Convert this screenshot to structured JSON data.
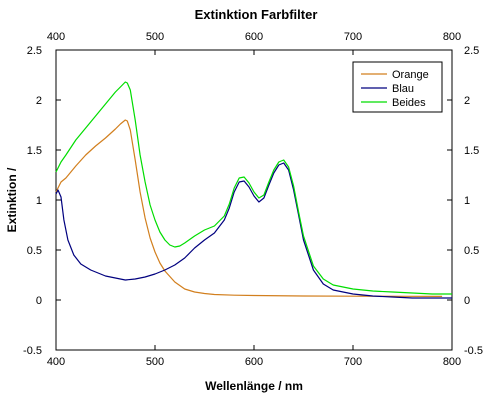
{
  "chart_data": {
    "type": "line",
    "title": "Extinktion Farbfilter",
    "xlabel": "Wellenlänge / nm",
    "ylabel": "Extinktion /",
    "xlim": [
      400,
      800
    ],
    "ylim": [
      -0.5,
      2.5
    ],
    "x_ticks": [
      400,
      500,
      600,
      700,
      800
    ],
    "y_ticks": [
      -0.5,
      0,
      0.5,
      1,
      1.5,
      2,
      2.5
    ],
    "x_tick_labels": [
      "400",
      "500",
      "600",
      "700",
      "800"
    ],
    "y_tick_labels": [
      "-0.5",
      "0",
      "0.5",
      "1",
      "1.5",
      "2",
      "2.5"
    ],
    "grid": false,
    "legend": "top-right",
    "series": [
      {
        "name": "Orange",
        "color": "#d27f1e",
        "x": [
          400,
          405,
          410,
          420,
          430,
          440,
          450,
          460,
          465,
          470,
          472,
          475,
          480,
          485,
          490,
          495,
          500,
          505,
          510,
          520,
          530,
          540,
          550,
          560,
          580,
          600,
          650,
          700,
          750,
          790
        ],
        "y": [
          1.08,
          1.18,
          1.22,
          1.34,
          1.45,
          1.54,
          1.62,
          1.71,
          1.76,
          1.8,
          1.79,
          1.7,
          1.4,
          1.08,
          0.82,
          0.62,
          0.48,
          0.37,
          0.29,
          0.18,
          0.11,
          0.08,
          0.065,
          0.055,
          0.048,
          0.045,
          0.04,
          0.038,
          0.037,
          0.036
        ]
      },
      {
        "name": "Blau",
        "color": "#00007f",
        "x": [
          400,
          402,
          405,
          408,
          412,
          418,
          425,
          435,
          450,
          470,
          480,
          490,
          500,
          510,
          520,
          530,
          540,
          550,
          560,
          570,
          575,
          580,
          585,
          590,
          595,
          600,
          605,
          610,
          615,
          620,
          625,
          630,
          635,
          640,
          645,
          650,
          660,
          670,
          680,
          700,
          720,
          740,
          760,
          780,
          800
        ],
        "y": [
          1.06,
          1.1,
          1.03,
          0.8,
          0.6,
          0.45,
          0.36,
          0.3,
          0.24,
          0.2,
          0.21,
          0.23,
          0.26,
          0.3,
          0.35,
          0.42,
          0.52,
          0.6,
          0.67,
          0.8,
          0.92,
          1.08,
          1.18,
          1.19,
          1.13,
          1.04,
          0.98,
          1.02,
          1.15,
          1.27,
          1.35,
          1.37,
          1.3,
          1.1,
          0.85,
          0.6,
          0.3,
          0.16,
          0.1,
          0.06,
          0.04,
          0.03,
          0.02,
          0.02,
          0.02
        ]
      },
      {
        "name": "Beides",
        "color": "#00dd00",
        "x": [
          400,
          405,
          410,
          420,
          430,
          440,
          450,
          460,
          465,
          470,
          472,
          475,
          480,
          485,
          490,
          495,
          500,
          505,
          510,
          515,
          520,
          525,
          530,
          540,
          550,
          560,
          570,
          575,
          580,
          585,
          590,
          595,
          600,
          605,
          610,
          615,
          620,
          625,
          630,
          635,
          640,
          645,
          650,
          660,
          670,
          680,
          700,
          720,
          740,
          760,
          780,
          800
        ],
        "y": [
          1.28,
          1.38,
          1.45,
          1.6,
          1.72,
          1.84,
          1.96,
          2.08,
          2.13,
          2.18,
          2.17,
          2.1,
          1.8,
          1.45,
          1.18,
          0.95,
          0.8,
          0.68,
          0.6,
          0.55,
          0.53,
          0.54,
          0.57,
          0.64,
          0.7,
          0.74,
          0.84,
          0.96,
          1.12,
          1.22,
          1.23,
          1.17,
          1.08,
          1.02,
          1.05,
          1.18,
          1.3,
          1.38,
          1.4,
          1.33,
          1.14,
          0.88,
          0.64,
          0.34,
          0.21,
          0.15,
          0.11,
          0.09,
          0.08,
          0.07,
          0.06,
          0.06
        ]
      }
    ]
  }
}
